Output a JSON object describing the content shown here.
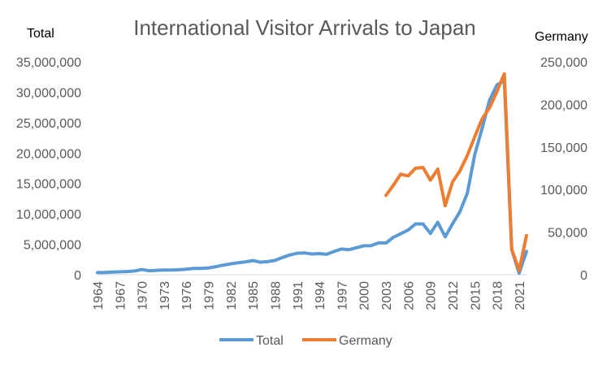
{
  "chart_data": {
    "type": "line",
    "title": "International Visitor Arrivals to Japan",
    "ylabel_left": "Total",
    "ylabel_right": "Germany",
    "ylim_left": [
      0,
      35000000
    ],
    "ylim_right": [
      0,
      250000
    ],
    "yticks_left": [
      "0",
      "5,000,000",
      "10,000,000",
      "15,000,000",
      "20,000,000",
      "25,000,000",
      "30,000,000",
      "35,000,000"
    ],
    "yticks_right": [
      "0",
      "50,000",
      "100,000",
      "150,000",
      "200,000",
      "250,000"
    ],
    "xlim": [
      1964,
      2022
    ],
    "xticks": [
      "1964",
      "1967",
      "1970",
      "1973",
      "1976",
      "1979",
      "1982",
      "1985",
      "1988",
      "1991",
      "1994",
      "1997",
      "2000",
      "2003",
      "2006",
      "2009",
      "2012",
      "2015",
      "2018",
      "2021"
    ],
    "grid": false,
    "legend_position": "bottom",
    "series": [
      {
        "name": "Total",
        "axis": "left",
        "color": "#5b9bd5",
        "x": [
          1964,
          1965,
          1966,
          1967,
          1968,
          1969,
          1970,
          1971,
          1972,
          1973,
          1974,
          1975,
          1976,
          1977,
          1978,
          1979,
          1980,
          1981,
          1982,
          1983,
          1984,
          1985,
          1986,
          1987,
          1988,
          1989,
          1990,
          1991,
          1992,
          1993,
          1994,
          1995,
          1996,
          1997,
          1998,
          1999,
          2000,
          2001,
          2002,
          2003,
          2004,
          2005,
          2006,
          2007,
          2008,
          2009,
          2010,
          2011,
          2012,
          2013,
          2014,
          2015,
          2016,
          2017,
          2018,
          2019,
          2020,
          2021,
          2022
        ],
        "values": [
          350000,
          370000,
          430000,
          480000,
          520000,
          610000,
          850000,
          660000,
          720000,
          780000,
          760000,
          810000,
          910000,
          1030000,
          1040000,
          1110000,
          1320000,
          1580000,
          1790000,
          1970000,
          2110000,
          2330000,
          2060000,
          2150000,
          2350000,
          2830000,
          3240000,
          3530000,
          3580000,
          3410000,
          3470000,
          3350000,
          3840000,
          4220000,
          4110000,
          4440000,
          4760000,
          4770000,
          5240000,
          5210000,
          6140000,
          6730000,
          7330000,
          8350000,
          8350000,
          6790000,
          8610000,
          6220000,
          8360000,
          10360000,
          13410000,
          19740000,
          24040000,
          28690000,
          31190000,
          31880000,
          4120000,
          250000,
          3830000
        ]
      },
      {
        "name": "Germany",
        "axis": "right",
        "color": "#ed7d31",
        "x": [
          2003,
          2004,
          2005,
          2006,
          2007,
          2008,
          2009,
          2010,
          2011,
          2012,
          2013,
          2014,
          2015,
          2016,
          2017,
          2018,
          2019,
          2020,
          2021,
          2022
        ],
        "values": [
          93000,
          105000,
          118000,
          116000,
          125000,
          126000,
          111000,
          124000,
          81000,
          109000,
          122000,
          140000,
          162000,
          183000,
          196000,
          215000,
          236000,
          30000,
          5000,
          46000
        ]
      }
    ]
  }
}
